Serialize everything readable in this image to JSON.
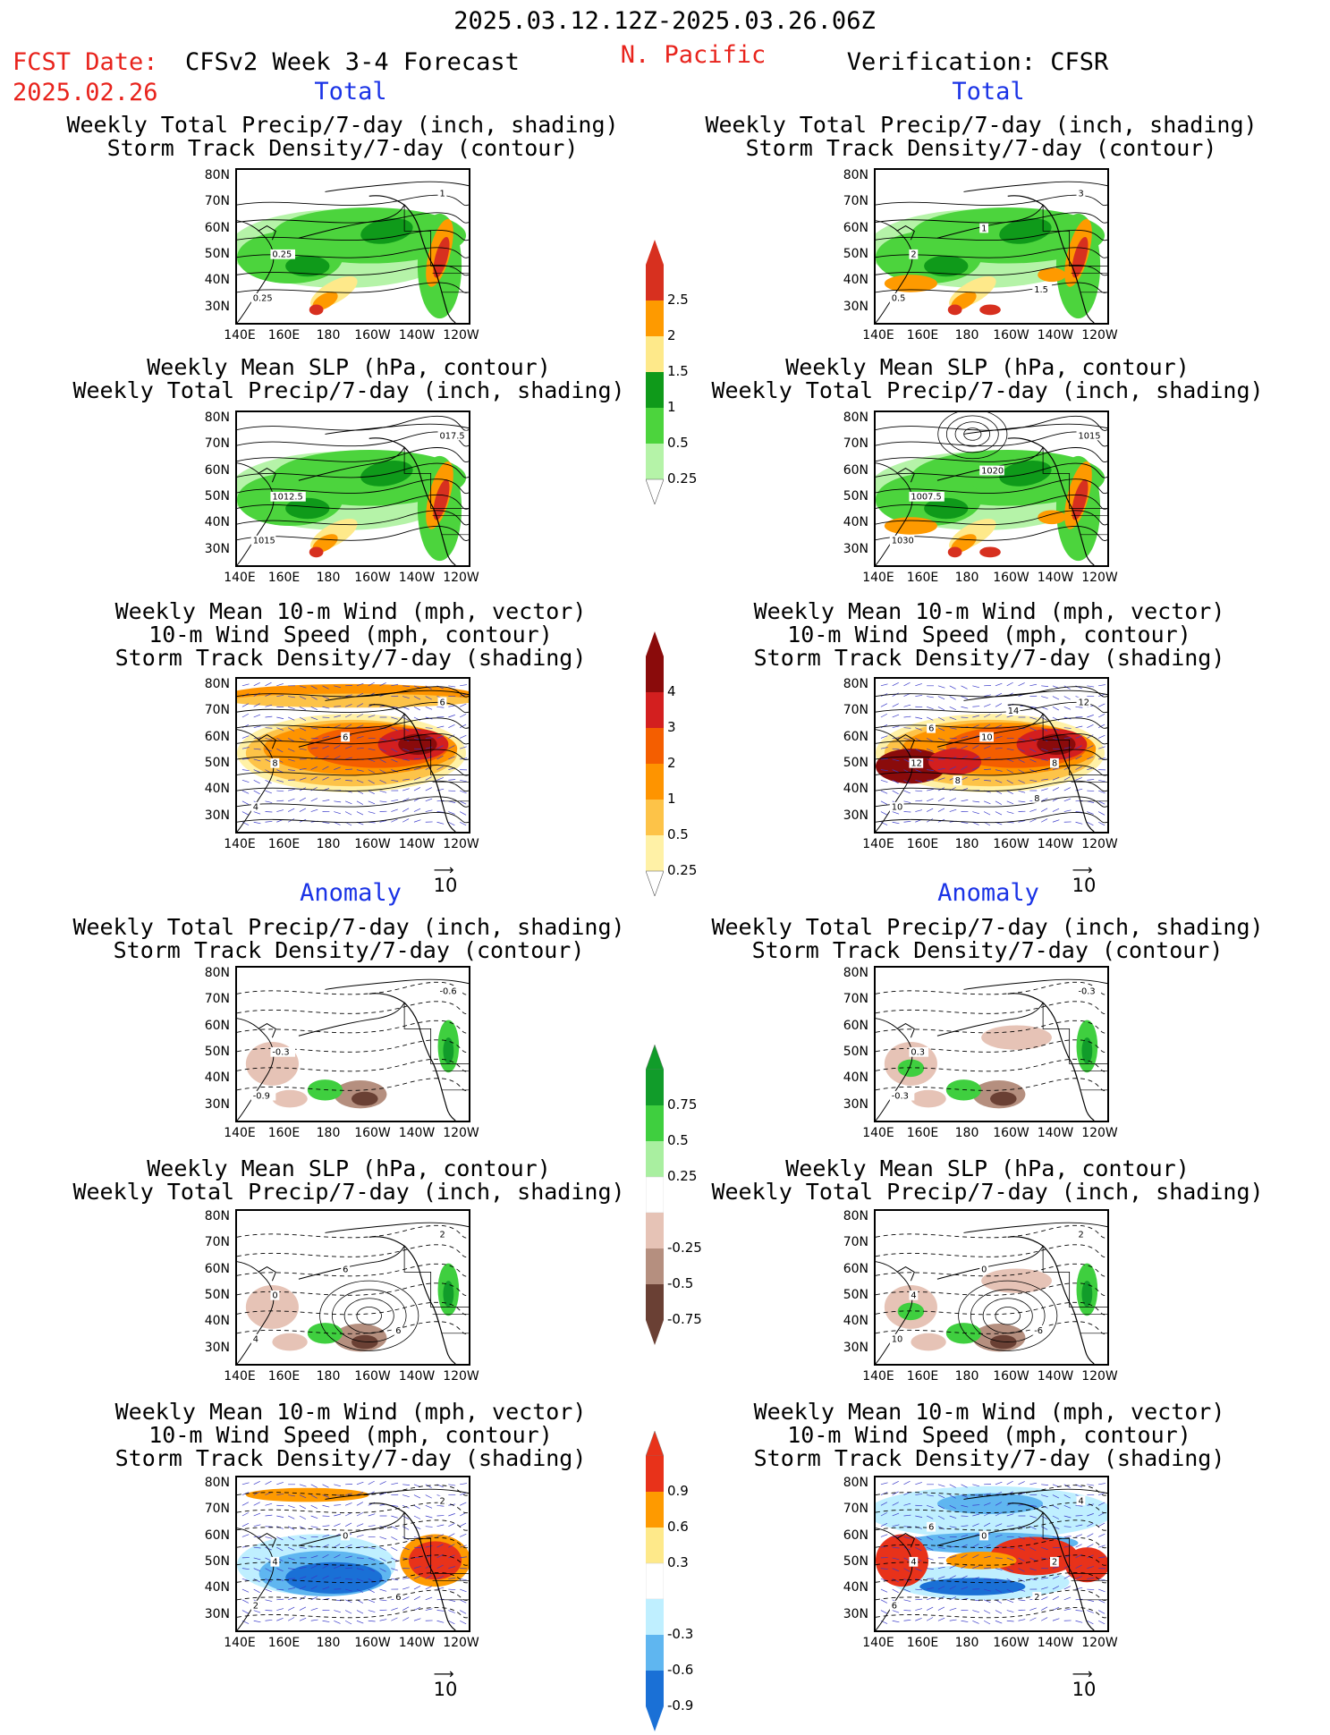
{
  "header": {
    "period": "2025.03.12.12Z-2025.03.26.06Z",
    "fcst_date_label": "FCST Date:",
    "fcst_date": "2025.02.26",
    "model_title": "CFSv2 Week 3-4 Forecast",
    "region": "N. Pacific",
    "verification": "Verification: CFSR"
  },
  "sections": {
    "total": "Total",
    "anomaly": "Anomaly"
  },
  "panel_titles": {
    "precip_storm": [
      "Weekly Total Precip/7-day (inch, shading)",
      "Storm Track Density/7-day (contour)"
    ],
    "slp_precip": [
      "Weekly Mean SLP (hPa, contour)",
      "Weekly Total Precip/7-day (inch, shading)"
    ],
    "wind_storm": [
      "Weekly Mean 10-m Wind (mph, vector)",
      "10-m Wind Speed (mph, contour)",
      "Storm Track Density/7-day (shading)"
    ]
  },
  "axes": {
    "lat_labels": [
      "80N",
      "70N",
      "60N",
      "50N",
      "40N",
      "30N"
    ],
    "lon_labels": [
      "140E",
      "160E",
      "180",
      "160W",
      "140W",
      "120W"
    ]
  },
  "vector_reference": "10",
  "colorbars": {
    "precip_total": {
      "labels": [
        "2.5",
        "2",
        "1.5",
        "1",
        "0.5",
        "0.25"
      ],
      "colors": [
        "#d7301f",
        "#fe9a00",
        "#fee98a",
        "#0f9a1a",
        "#4cd43d",
        "#b5f3a8"
      ]
    },
    "storm_total": {
      "labels": [
        "4",
        "3",
        "2",
        "1",
        "0.5",
        "0.25"
      ],
      "colors": [
        "#8a0b0b",
        "#d31f1f",
        "#f45e00",
        "#fe9400",
        "#fdc348",
        "#fff1a6"
      ]
    },
    "precip_anom": {
      "labels": [
        "0.75",
        "0.5",
        "0.25",
        "-0.25",
        "-0.5",
        "-0.75"
      ],
      "colors": [
        "#119c2a",
        "#3fcf3f",
        "#a9efa0",
        "#ffffff",
        "#e6c3b6",
        "#b58f7f",
        "#6a4034"
      ]
    },
    "storm_anom": {
      "labels": [
        "0.9",
        "0.6",
        "0.3",
        "-0.3",
        "-0.6",
        "-0.9"
      ],
      "colors": [
        "#e8321a",
        "#fe9a00",
        "#fee98a",
        "#ffffff",
        "#bfefff",
        "#5fb6f0",
        "#1a70d6"
      ]
    }
  },
  "contour_labels": {
    "r1l": [
      "0.25",
      "1",
      "0.25"
    ],
    "r1r": [
      "0.5",
      "3",
      "2",
      "1",
      "1.5"
    ],
    "r2l": [
      "1015",
      "017.5",
      "1012.5"
    ],
    "r2r": [
      "1030",
      "1015",
      "1007.5",
      "1020"
    ],
    "r3l": [
      "4",
      "6",
      "8",
      "6"
    ],
    "r3r": [
      "10",
      "12",
      "12",
      "10",
      "8",
      "6",
      "8",
      "8",
      "14"
    ],
    "r4l": [
      "-0.9",
      "-0.6",
      "-0.3"
    ],
    "r4r": [
      "-0.3",
      "-0.3",
      "0.3"
    ],
    "r5l": [
      "4",
      "2",
      "0",
      "6",
      "6"
    ],
    "r5r": [
      "10",
      "2",
      "4",
      "0",
      "-6"
    ],
    "r6l": [
      "2",
      "2",
      "4",
      "0",
      "6"
    ],
    "r6r": [
      "6",
      "4",
      "4",
      "0",
      "2",
      "6",
      "2"
    ]
  }
}
